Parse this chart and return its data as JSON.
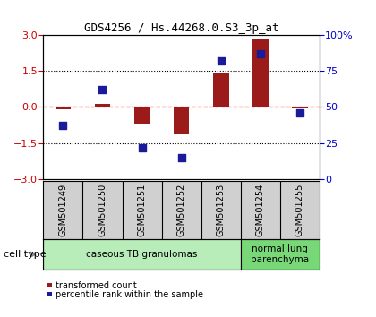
{
  "title": "GDS4256 / Hs.44268.0.S3_3p_at",
  "samples": [
    "GSM501249",
    "GSM501250",
    "GSM501251",
    "GSM501252",
    "GSM501253",
    "GSM501254",
    "GSM501255"
  ],
  "transformed_count": [
    -0.08,
    0.12,
    -0.72,
    -1.15,
    1.38,
    2.82,
    -0.04
  ],
  "percentile_rank": [
    37,
    62,
    22,
    15,
    82,
    87,
    46
  ],
  "left_ylim": [
    -3,
    3
  ],
  "left_yticks": [
    -3,
    -1.5,
    0,
    1.5,
    3
  ],
  "right_yticks": [
    0,
    25,
    50,
    75,
    100
  ],
  "right_ylabels": [
    "0",
    "25",
    "50",
    "75",
    "100%"
  ],
  "dotted_hlines": [
    -1.5,
    1.5
  ],
  "red_dashed_hline": 0,
  "bar_color": "#9B1A1A",
  "dot_color": "#1A1A9B",
  "bar_width": 0.4,
  "dot_size": 28,
  "groups": [
    {
      "start": 0,
      "end": 4,
      "label": "caseous TB granulomas",
      "color": "#b8ecb8"
    },
    {
      "start": 5,
      "end": 6,
      "label": "normal lung\nparenchyma",
      "color": "#78d878"
    }
  ],
  "legend_bar_label": "transformed count",
  "legend_dot_label": "percentile rank within the sample",
  "cell_type_label": "cell type",
  "tick_label_color_left": "#cc0000",
  "tick_label_color_right": "#0000cc",
  "sample_box_color": "#d0d0d0",
  "title_fontsize": 9,
  "tick_fontsize": 8,
  "sample_fontsize": 7,
  "legend_fontsize": 7,
  "cell_type_fontsize": 8,
  "group_fontsize": 7.5
}
